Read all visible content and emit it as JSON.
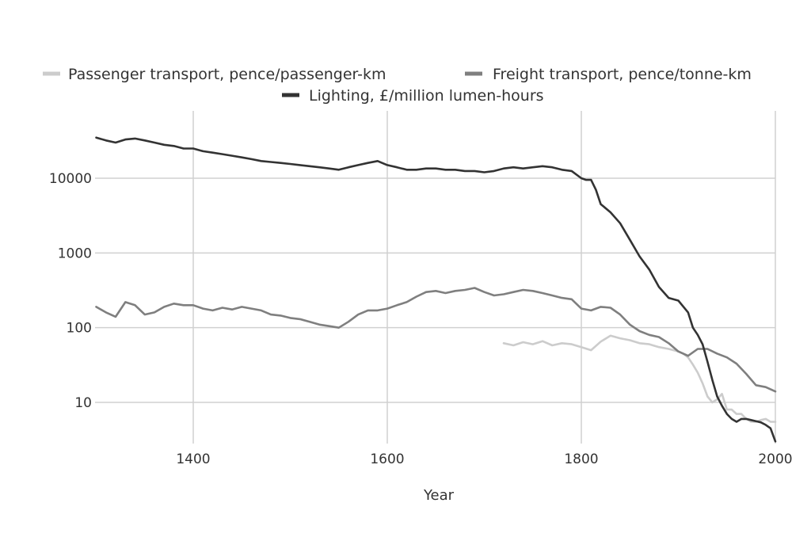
{
  "chart_data": {
    "type": "line",
    "xlabel": "Year",
    "ylabel": "",
    "xlim": [
      1300,
      2000
    ],
    "ylim": [
      3,
      45000
    ],
    "yscale": "log",
    "grid": true,
    "legend_position": "top",
    "xticks": [
      1400,
      1600,
      1800,
      2000
    ],
    "yticks": [
      10,
      100,
      1000,
      10000
    ],
    "xtick_labels": [
      "1400",
      "1600",
      "1800",
      "2000"
    ],
    "ytick_labels": [
      "10",
      "100",
      "1000",
      "10000"
    ],
    "series": [
      {
        "name": "Passenger transport, pence/passenger-km",
        "color": "#cccccc",
        "x": [
          1720,
          1730,
          1740,
          1750,
          1760,
          1770,
          1780,
          1790,
          1800,
          1810,
          1820,
          1830,
          1840,
          1850,
          1860,
          1870,
          1880,
          1890,
          1900,
          1905,
          1910,
          1915,
          1920,
          1925,
          1930,
          1935,
          1940,
          1945,
          1950,
          1955,
          1960,
          1965,
          1970,
          1975,
          1980,
          1985,
          1990,
          1995,
          2000
        ],
        "values": [
          62,
          58,
          64,
          60,
          66,
          58,
          62,
          60,
          55,
          50,
          65,
          78,
          72,
          68,
          62,
          60,
          55,
          52,
          48,
          45,
          40,
          32,
          25,
          18,
          12,
          10,
          11,
          13,
          8,
          8,
          7,
          7,
          6,
          5.5,
          5.5,
          5.8,
          6,
          5.5,
          5.5
        ]
      },
      {
        "name": "Freight transport, pence/tonne-km",
        "color": "#7f7f7f",
        "x": [
          1300,
          1310,
          1320,
          1330,
          1340,
          1350,
          1360,
          1370,
          1380,
          1390,
          1400,
          1410,
          1420,
          1430,
          1440,
          1450,
          1460,
          1470,
          1480,
          1490,
          1500,
          1510,
          1520,
          1530,
          1540,
          1550,
          1560,
          1570,
          1580,
          1590,
          1600,
          1610,
          1620,
          1630,
          1640,
          1650,
          1660,
          1670,
          1680,
          1690,
          1700,
          1710,
          1720,
          1730,
          1740,
          1750,
          1760,
          1770,
          1780,
          1790,
          1800,
          1810,
          1820,
          1830,
          1840,
          1850,
          1860,
          1870,
          1880,
          1890,
          1900,
          1910,
          1920,
          1930,
          1940,
          1950,
          1960,
          1970,
          1980,
          1990,
          2000
        ],
        "values": [
          190,
          160,
          140,
          220,
          200,
          150,
          160,
          190,
          210,
          200,
          200,
          180,
          170,
          185,
          175,
          190,
          180,
          170,
          150,
          145,
          135,
          130,
          120,
          110,
          105,
          100,
          120,
          150,
          170,
          170,
          180,
          200,
          220,
          260,
          300,
          310,
          290,
          310,
          320,
          340,
          300,
          270,
          280,
          300,
          320,
          310,
          290,
          270,
          250,
          240,
          180,
          170,
          190,
          185,
          150,
          110,
          90,
          80,
          75,
          62,
          48,
          42,
          52,
          52,
          45,
          40,
          33,
          24,
          17,
          16,
          14
        ]
      },
      {
        "name": "Lighting, £/million lumen-hours",
        "color": "#333333",
        "x": [
          1300,
          1310,
          1320,
          1330,
          1340,
          1350,
          1360,
          1370,
          1380,
          1390,
          1400,
          1410,
          1420,
          1430,
          1440,
          1450,
          1460,
          1470,
          1480,
          1490,
          1500,
          1510,
          1520,
          1530,
          1540,
          1550,
          1560,
          1570,
          1580,
          1590,
          1600,
          1610,
          1620,
          1630,
          1640,
          1650,
          1660,
          1670,
          1680,
          1690,
          1700,
          1710,
          1720,
          1730,
          1740,
          1750,
          1760,
          1770,
          1780,
          1790,
          1800,
          1805,
          1810,
          1815,
          1820,
          1830,
          1840,
          1850,
          1860,
          1870,
          1880,
          1890,
          1900,
          1910,
          1915,
          1920,
          1925,
          1930,
          1935,
          1940,
          1945,
          1950,
          1955,
          1960,
          1965,
          1970,
          1975,
          1980,
          1985,
          1990,
          1995,
          2000
        ],
        "values": [
          35000,
          32000,
          30000,
          33000,
          34000,
          32000,
          30000,
          28000,
          27000,
          25000,
          25000,
          23000,
          22000,
          21000,
          20000,
          19000,
          18000,
          17000,
          16500,
          16000,
          15500,
          15000,
          14500,
          14000,
          13500,
          13000,
          14000,
          15000,
          16000,
          17000,
          15000,
          14000,
          13000,
          13000,
          13500,
          13500,
          13000,
          13000,
          12500,
          12500,
          12000,
          12500,
          13500,
          14000,
          13500,
          14000,
          14500,
          14000,
          13000,
          12500,
          10000,
          9500,
          9500,
          7000,
          4500,
          3500,
          2500,
          1500,
          900,
          600,
          350,
          250,
          230,
          160,
          100,
          80,
          60,
          35,
          20,
          12,
          9,
          7,
          6,
          5.5,
          6,
          6,
          5.8,
          5.6,
          5.4,
          5,
          4.5,
          3
        ]
      }
    ]
  }
}
